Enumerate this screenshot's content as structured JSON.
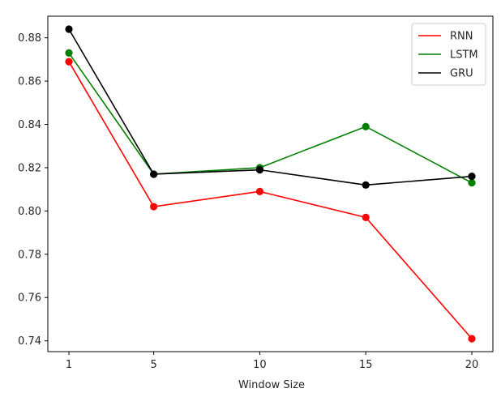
{
  "chart_data": {
    "type": "line",
    "title": "",
    "xlabel": "Window Size",
    "ylabel": "",
    "x": [
      1,
      5,
      10,
      15,
      20
    ],
    "xticks": [
      "1",
      "5",
      "10",
      "15",
      "20"
    ],
    "ylim": [
      0.735,
      0.89
    ],
    "yticks": [
      "0.74",
      "0.76",
      "0.78",
      "0.80",
      "0.82",
      "0.84",
      "0.86",
      "0.88"
    ],
    "yticks_values": [
      0.74,
      0.76,
      0.78,
      0.8,
      0.82,
      0.84,
      0.86,
      0.88
    ],
    "grid": false,
    "legend_position": "top-right",
    "series": [
      {
        "name": "RNN",
        "color": "#ff0000",
        "values": [
          0.869,
          0.802,
          0.809,
          0.797,
          0.741
        ]
      },
      {
        "name": "LSTM",
        "color": "#008000",
        "values": [
          0.873,
          0.817,
          0.82,
          0.839,
          0.813
        ]
      },
      {
        "name": "GRU",
        "color": "#000000",
        "values": [
          0.884,
          0.817,
          0.819,
          0.812,
          0.816
        ]
      }
    ]
  }
}
